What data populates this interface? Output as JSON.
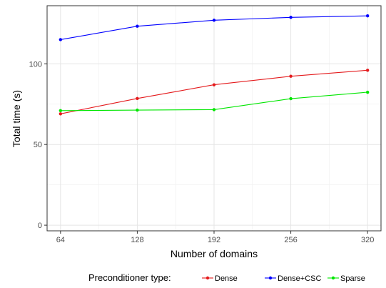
{
  "chart_data": {
    "type": "line",
    "xlabel": "Number of domains",
    "ylabel": "Total time (s)",
    "x": [
      64,
      128,
      192,
      256,
      320
    ],
    "xticks": [
      64,
      128,
      192,
      256,
      320
    ],
    "xtick_labels": [
      "64",
      "128",
      "192",
      "256",
      "320"
    ],
    "yticks": [
      0,
      50,
      100
    ],
    "ytick_labels": [
      "0",
      "50",
      "100"
    ],
    "xlim": [
      52.8,
      331.2
    ],
    "ylim": [
      -3.5,
      136
    ],
    "grid": true,
    "legend": {
      "title": "Preconditioner type:",
      "placement": "bottom"
    },
    "series": [
      {
        "name": "Dense",
        "color": "#e41a1c",
        "values": [
          69,
          78.5,
          87,
          92.3,
          96
        ]
      },
      {
        "name": "Dense+CSC",
        "color": "#0000ff",
        "values": [
          115,
          123.3,
          127,
          128.8,
          129.7
        ]
      },
      {
        "name": "Sparse",
        "color": "#00e600",
        "values": [
          71,
          71.3,
          71.6,
          78.4,
          82.4
        ]
      }
    ]
  }
}
